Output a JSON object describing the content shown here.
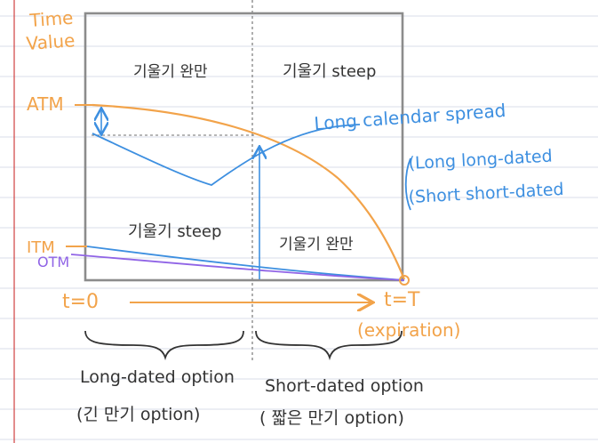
{
  "colors": {
    "paper": "#ffffff",
    "rule_line": "#d9dde8",
    "margin_line": "#d04040",
    "box": "#8c8c8c",
    "orange": "#f2a34a",
    "blue": "#3d8fe0",
    "purple": "#9064e6",
    "dark": "#333333"
  },
  "labels": {
    "time": "Time",
    "value": "Value",
    "atm": "ATM",
    "itm": "ITM",
    "otm": "OTM",
    "region_top_left": "기울기 완만",
    "region_top_right": "기울기 steep",
    "region_bottom_left": "기울기 steep",
    "region_bottom_right": "기울기 완만",
    "t_start": "t=0",
    "t_end": "t=T",
    "expiration": "(expiration)",
    "long_calendar": "Long calendar spread",
    "long_long": "(Long long-dated",
    "short_short": "(Short short-dated",
    "long_dated_option": "Long-dated option",
    "long_dated_kr": "(긴 만기 option)",
    "short_dated_option": "Short-dated option",
    "short_dated_kr": "( 짧은 만기 option)"
  }
}
